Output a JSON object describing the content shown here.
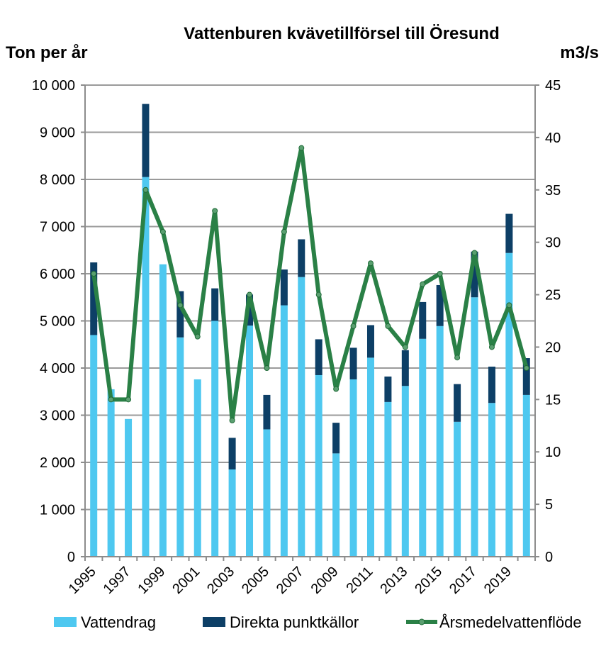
{
  "chart_data": {
    "type": "bar+line",
    "title": "Vattenburen kvävetillförsel till Öresund",
    "ylabel_left": "Ton per år",
    "ylabel_right": "m3/s",
    "years": [
      1995,
      1996,
      1997,
      1998,
      1999,
      2000,
      2001,
      2002,
      2003,
      2004,
      2005,
      2006,
      2007,
      2008,
      2009,
      2010,
      2011,
      2012,
      2013,
      2014,
      2015,
      2016,
      2017,
      2018,
      2019,
      2020
    ],
    "x_tick_labels": [
      "1995",
      "1997",
      "1999",
      "2001",
      "2003",
      "2005",
      "2007",
      "2009",
      "2011",
      "2013",
      "2015",
      "2017",
      "2019"
    ],
    "y_left_ticks": [
      "0",
      "1 000",
      "2 000",
      "3 000",
      "4 000",
      "5 000",
      "6 000",
      "7 000",
      "8 000",
      "9 000",
      "10 000"
    ],
    "y_right_ticks": [
      "0",
      "5",
      "10",
      "15",
      "20",
      "25",
      "30",
      "35",
      "40",
      "45"
    ],
    "ylim_left": [
      0,
      10000
    ],
    "ylim_right": [
      0,
      45
    ],
    "series": [
      {
        "name": "Vattendrag",
        "type": "bar-stacked",
        "color": "#4ec8f0",
        "values": [
          4700,
          3550,
          2920,
          8050,
          6200,
          4650,
          3760,
          5000,
          1850,
          4900,
          2700,
          5330,
          5930,
          3850,
          2190,
          3760,
          4220,
          3280,
          3620,
          4620,
          4890,
          2860,
          5500,
          3260,
          6440,
          3430
        ]
      },
      {
        "name": "Direkta punktkällor",
        "type": "bar-stacked",
        "color": "#0d3f66",
        "values": [
          1540,
          0,
          0,
          1550,
          0,
          980,
          0,
          690,
          670,
          660,
          730,
          760,
          800,
          760,
          650,
          670,
          690,
          540,
          760,
          780,
          870,
          800,
          970,
          770,
          830,
          780
        ]
      },
      {
        "name": "Årsmedelvattenflöde",
        "type": "line",
        "axis": "right",
        "color": "#2a8046",
        "values": [
          27,
          15,
          15,
          35,
          31,
          24,
          21,
          33,
          13,
          25,
          18,
          31,
          39,
          25,
          16,
          22,
          28,
          22,
          20,
          26,
          27,
          19,
          29,
          20,
          24,
          18
        ]
      }
    ],
    "legend": [
      "Vattendrag",
      "Direkta punktkällor",
      "Årsmedelvattenflöde"
    ],
    "gridlines": "horizontal",
    "legend_position": "bottom"
  }
}
